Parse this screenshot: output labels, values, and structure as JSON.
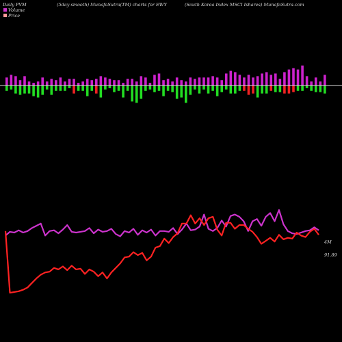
{
  "header": {
    "left": "Daily PVM",
    "center": "(5day smooth) MunafaSutra(TM) charts for EWY",
    "right": "(South Korea  Index MSCI Ishares) MunafaSutra.com"
  },
  "legend": [
    {
      "label": "Volume",
      "color": "#cc33cc"
    },
    {
      "label": "Price",
      "color": "#ff9999"
    }
  ],
  "end_labels": {
    "volume": "4M",
    "price": "91.89"
  },
  "colors": {
    "background": "#000000",
    "volume_line": "#cc33cc",
    "price_line": "#ff2222",
    "bar_up": "#cc22cc",
    "bar_down_green": "#22dd22",
    "bar_down_red": "#ee2222",
    "baseline": "#dddddd"
  },
  "chart_data": [
    {
      "type": "bar",
      "title": "Daily PVM",
      "x": [
        1,
        2,
        3,
        4,
        5,
        6,
        7,
        8,
        9,
        10,
        11,
        12,
        13,
        14,
        15,
        16,
        17,
        18,
        19,
        20,
        21,
        22,
        23,
        24,
        25,
        26,
        27,
        28,
        29,
        30,
        31,
        32,
        33,
        34,
        35,
        36,
        37,
        38,
        39,
        40,
        41,
        42,
        43,
        44,
        45,
        46,
        47,
        48,
        49,
        50,
        51,
        52,
        53,
        54,
        55,
        56,
        57,
        58,
        59,
        60,
        61,
        62,
        63,
        64,
        65,
        66,
        67,
        68,
        69,
        70,
        71,
        72
      ],
      "series": [
        {
          "name": "up",
          "values": [
            6,
            8,
            7,
            4,
            7,
            3,
            2,
            3,
            6,
            3,
            5,
            4,
            6,
            3,
            5,
            5,
            2,
            3,
            5,
            4,
            5,
            7,
            6,
            5,
            4,
            4,
            2,
            5,
            5,
            3,
            7,
            6,
            2,
            8,
            9,
            4,
            5,
            3,
            6,
            4,
            3,
            6,
            5,
            6,
            6,
            6,
            7,
            6,
            4,
            9,
            11,
            10,
            8,
            6,
            8,
            6,
            7,
            9,
            10,
            8,
            9,
            5,
            10,
            12,
            13,
            12,
            15,
            7,
            3,
            6,
            3,
            8
          ]
        },
        {
          "name": "down",
          "values": [
            -4,
            -3,
            -6,
            -7,
            -6,
            -6,
            -8,
            -9,
            -7,
            -3,
            -7,
            -4,
            -4,
            -4,
            -2,
            -6,
            -4,
            -4,
            -8,
            -4,
            -6,
            -9,
            -3,
            -2,
            -5,
            -4,
            -9,
            -4,
            -12,
            -13,
            -10,
            -4,
            -3,
            -5,
            -4,
            -8,
            -4,
            -5,
            -10,
            -9,
            -13,
            -7,
            -3,
            -6,
            -3,
            -6,
            -4,
            -8,
            -5,
            -3,
            -6,
            -6,
            -4,
            -4,
            -7,
            -6,
            -9,
            -6,
            -6,
            -4,
            -5,
            -5,
            -6,
            -6,
            -5,
            -4,
            -4,
            -2,
            -4,
            -5,
            -5,
            -6
          ]
        },
        {
          "name": "down_color",
          "values": [
            "g",
            "g",
            "g",
            "g",
            "g",
            "g",
            "g",
            "g",
            "g",
            "g",
            "g",
            "g",
            "g",
            "g",
            "g",
            "r",
            "g",
            "g",
            "g",
            "g",
            "r",
            "g",
            "g",
            "g",
            "g",
            "g",
            "g",
            "g",
            "g",
            "g",
            "g",
            "g",
            "g",
            "g",
            "g",
            "g",
            "g",
            "g",
            "g",
            "g",
            "g",
            "g",
            "g",
            "g",
            "g",
            "g",
            "g",
            "g",
            "g",
            "g",
            "g",
            "g",
            "g",
            "r",
            "r",
            "r",
            "g",
            "g",
            "g",
            "r",
            "g",
            "g",
            "r",
            "r",
            "r",
            "g",
            "g",
            "g",
            "g",
            "g",
            "g",
            "g"
          ]
        }
      ]
    },
    {
      "type": "line",
      "series": [
        {
          "name": "Volume",
          "values": [
            4.6,
            5.1,
            5.0,
            5.3,
            5.0,
            5.2,
            5.6,
            5.9,
            6.2,
            4.6,
            5.2,
            5.3,
            4.9,
            5.4,
            6.0,
            5.1,
            5.0,
            5.1,
            5.2,
            5.6,
            4.9,
            5.4,
            5.1,
            5.2,
            5.5,
            4.8,
            4.5,
            5.2,
            5.0,
            5.5,
            4.7,
            5.3,
            5.0,
            5.4,
            4.6,
            5.2,
            5.2,
            5.1,
            5.6,
            4.8,
            5.4,
            6.2,
            5.3,
            5.4,
            5.8,
            7.4,
            5.5,
            5.2,
            5.6,
            6.6,
            5.8,
            7.2,
            7.4,
            7.1,
            6.5,
            5.2,
            6.5,
            6.8,
            5.9,
            7.1,
            7.6,
            6.5,
            8.0,
            6.1,
            5.2,
            4.9,
            4.8,
            5.0,
            5.2,
            5.3,
            5.7,
            5.3
          ]
        },
        {
          "name": "Price",
          "values": [
            5.2,
            -3.0,
            -2.9,
            -2.8,
            -2.6,
            -2.3,
            -1.7,
            -1.1,
            -0.6,
            -0.3,
            -0.2,
            0.3,
            0.1,
            0.5,
            0.0,
            0.6,
            0.1,
            0.2,
            -0.5,
            0.1,
            -0.2,
            -0.8,
            -0.3,
            -1.1,
            -0.3,
            0.3,
            0.9,
            1.7,
            1.8,
            2.4,
            2.0,
            2.3,
            1.3,
            1.8,
            3.0,
            3.2,
            4.2,
            3.6,
            4.4,
            4.9,
            6.2,
            6.2,
            7.3,
            6.2,
            6.9,
            6.0,
            6.9,
            7.1,
            5.4,
            4.6,
            6.3,
            6.3,
            5.5,
            6.0,
            6.0,
            5.5,
            5.1,
            4.4,
            3.5,
            3.9,
            4.3,
            3.8,
            4.7,
            4.1,
            4.3,
            4.2,
            5.0,
            4.6,
            4.4,
            5.1,
            5.5,
            4.7
          ]
        }
      ]
    }
  ]
}
